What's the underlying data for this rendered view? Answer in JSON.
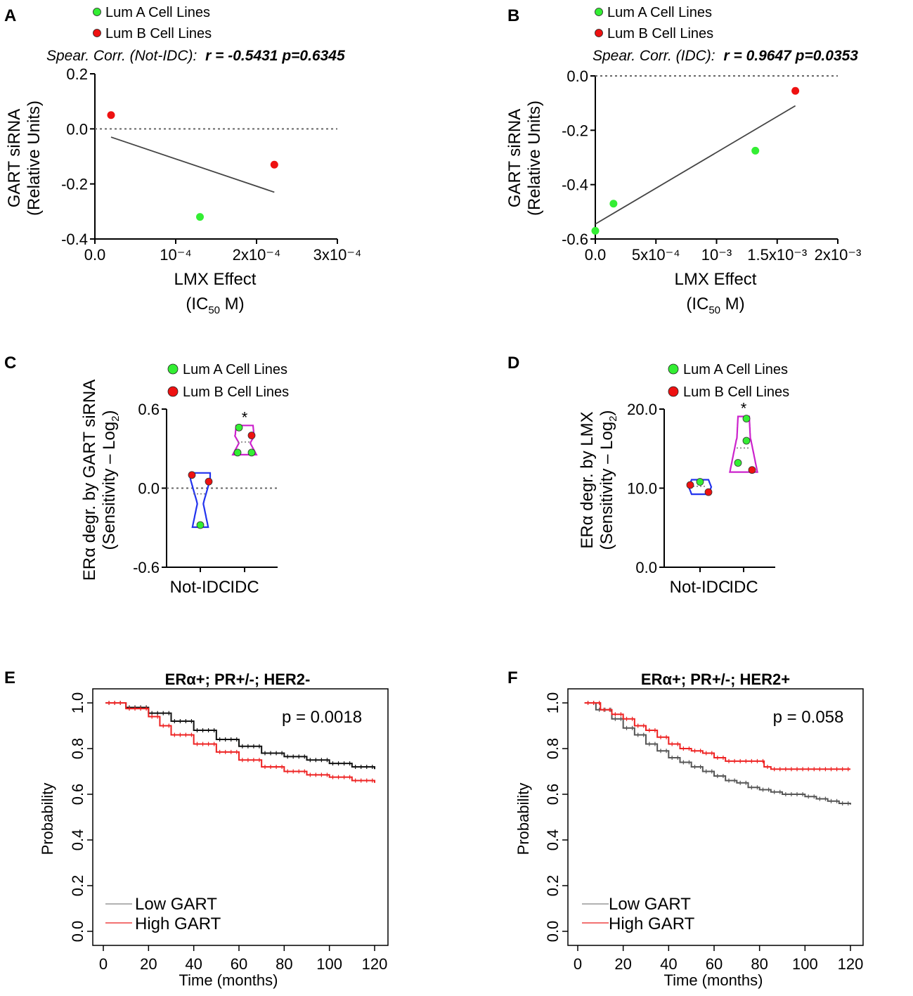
{
  "colors": {
    "lumA": "#33ee33",
    "lumB": "#ee1111",
    "low": "#111111",
    "high": "#ee2222",
    "violinIDC_C": "#cc22cc",
    "violinNot_C": "#2233ee"
  },
  "chart_data": [
    {
      "panel": "A",
      "type": "scatter",
      "legend": [
        "Lum A Cell Lines",
        "Lum B Cell Lines"
      ],
      "correlation": {
        "label": "Spear. Corr. (Not-IDC):",
        "stat": "r = -0.5431 p=0.6345"
      },
      "ylabel": [
        "GART siRNA",
        "(Relative Units)"
      ],
      "xlabel": "LMX Effect",
      "xunit": {
        "pre": "(IC",
        "sub": "50",
        "post": " M)"
      },
      "xlim": [
        0,
        0.0003
      ],
      "ylim": [
        -0.4,
        0.2
      ],
      "xticks": [
        0,
        0.0001,
        0.0002,
        0.0003
      ],
      "xtick_labels": [
        "0.0",
        "10⁻⁴",
        "2x10⁻⁴",
        "3x10⁻⁴"
      ],
      "yticks": [
        0.2,
        0.0,
        -0.2,
        -0.4
      ],
      "ytick_labels": [
        "0.2",
        "0.0",
        "-0.2",
        "-0.4"
      ],
      "points": [
        {
          "group": "Lum B",
          "x": 2e-05,
          "y": 0.05
        },
        {
          "group": "Lum B",
          "x": 0.000222,
          "y": -0.13
        },
        {
          "group": "Lum A",
          "x": 0.00013,
          "y": -0.32
        }
      ],
      "fit": {
        "x": [
          2e-05,
          0.000222
        ],
        "y": [
          -0.03,
          -0.23
        ]
      },
      "reference_y": 0.0
    },
    {
      "panel": "B",
      "type": "scatter",
      "legend": [
        "Lum A Cell Lines",
        "Lum B Cell Lines"
      ],
      "correlation": {
        "label": "Spear. Corr. (IDC):",
        "stat": "r = 0.9647 p=0.0353"
      },
      "ylabel": [
        "GART siRNA",
        "(Relative Units)"
      ],
      "xlabel": "LMX Effect",
      "xunit": {
        "pre": "(IC",
        "sub": "50",
        "post": " M)"
      },
      "xlim": [
        0,
        0.002
      ],
      "ylim": [
        -0.6,
        0.0
      ],
      "xticks": [
        0,
        0.0005,
        0.001,
        0.0015,
        0.002
      ],
      "xtick_labels": [
        "0.0",
        "5x10⁻⁴",
        "10⁻³",
        "1.5x10⁻³",
        "2x10⁻³"
      ],
      "yticks": [
        0.0,
        -0.2,
        -0.4,
        -0.6
      ],
      "ytick_labels": [
        "0.0",
        "-0.2",
        "-0.4",
        "-0.6"
      ],
      "points": [
        {
          "group": "Lum A",
          "x": 0.0,
          "y": -0.57
        },
        {
          "group": "Lum A",
          "x": 0.00015,
          "y": -0.47
        },
        {
          "group": "Lum A",
          "x": 0.00132,
          "y": -0.275
        },
        {
          "group": "Lum B",
          "x": 0.00165,
          "y": -0.055
        }
      ],
      "fit": {
        "x": [
          0.0,
          0.00165
        ],
        "y": [
          -0.545,
          -0.11
        ]
      },
      "reference_y": 0.0
    },
    {
      "panel": "C",
      "type": "violin",
      "legend": [
        "Lum A Cell Lines",
        "Lum B Cell Lines"
      ],
      "ylabel": {
        "line1": "ERα degr. by GART siRNA",
        "line2_pre": "(Sensitivity – Log",
        "line2_sub": "2",
        "line2_post": ")"
      },
      "categories": [
        "Not-IDC",
        "IDC"
      ],
      "ylim": [
        -0.6,
        0.6
      ],
      "yticks": [
        0.6,
        0.0,
        -0.6
      ],
      "ytick_labels": [
        "0.6",
        "0.0",
        "-0.6"
      ],
      "significance": "*",
      "groups": [
        {
          "name": "Not-IDC",
          "points": [
            {
              "group": "Lum B",
              "y": 0.1
            },
            {
              "group": "Lum B",
              "y": 0.05
            },
            {
              "group": "Lum A",
              "y": -0.28
            }
          ]
        },
        {
          "name": "IDC",
          "points": [
            {
              "group": "Lum A",
              "y": 0.46
            },
            {
              "group": "Lum B",
              "y": 0.4
            },
            {
              "group": "Lum A",
              "y": 0.27
            },
            {
              "group": "Lum A",
              "y": 0.27
            }
          ]
        }
      ],
      "reference_y": 0.0
    },
    {
      "panel": "D",
      "type": "violin",
      "legend": [
        "Lum A Cell Lines",
        "Lum B Cell Lines"
      ],
      "ylabel": {
        "line1": "ERα degr. by LMX",
        "line2_pre": "(Sensitivity – Log",
        "line2_sub": "2",
        "line2_post": ")"
      },
      "categories": [
        "Not-IDC",
        "IDC"
      ],
      "ylim": [
        0,
        20
      ],
      "yticks": [
        20,
        10,
        0
      ],
      "ytick_labels": [
        "20.0",
        "10.0",
        "0.0"
      ],
      "significance": "*",
      "groups": [
        {
          "name": "Not-IDC",
          "points": [
            {
              "group": "Lum A",
              "y": 10.8
            },
            {
              "group": "Lum B",
              "y": 10.4
            },
            {
              "group": "Lum B",
              "y": 9.5
            }
          ]
        },
        {
          "name": "IDC",
          "points": [
            {
              "group": "Lum A",
              "y": 18.8
            },
            {
              "group": "Lum A",
              "y": 16.0
            },
            {
              "group": "Lum A",
              "y": 13.2
            },
            {
              "group": "Lum B",
              "y": 12.3
            }
          ]
        }
      ]
    },
    {
      "panel": "E",
      "type": "line",
      "title": "ERα+; PR+/-; HER2-",
      "p_value": "p = 0.0018",
      "xlabel": "Time (months)",
      "ylabel": "Probability",
      "xlim": [
        0,
        120
      ],
      "ylim": [
        0,
        1
      ],
      "xticks": [
        0,
        20,
        40,
        60,
        80,
        100,
        120
      ],
      "yticks": [
        0.0,
        0.2,
        0.4,
        0.6,
        0.8,
        1.0
      ],
      "ytick_labels": [
        "0.0",
        "0.2",
        "0.4",
        "0.6",
        "0.8",
        "1.0"
      ],
      "series": [
        {
          "name": "Low GART",
          "x": [
            1,
            10,
            20,
            30,
            40,
            50,
            60,
            70,
            80,
            90,
            100,
            110,
            120
          ],
          "y": [
            1.0,
            0.98,
            0.955,
            0.92,
            0.88,
            0.84,
            0.81,
            0.78,
            0.765,
            0.75,
            0.735,
            0.72,
            0.71
          ]
        },
        {
          "name": "High GART",
          "x": [
            1,
            10,
            20,
            25,
            30,
            40,
            50,
            60,
            70,
            80,
            90,
            100,
            110,
            120
          ],
          "y": [
            1.0,
            0.975,
            0.94,
            0.9,
            0.86,
            0.82,
            0.785,
            0.75,
            0.72,
            0.7,
            0.685,
            0.675,
            0.66,
            0.65
          ]
        }
      ]
    },
    {
      "panel": "F",
      "type": "line",
      "title": "ERα+; PR+/-; HER2+",
      "p_value": "p = 0.058",
      "xlabel": "Time (months)",
      "ylabel": "Probability",
      "xlim": [
        0,
        120
      ],
      "ylim": [
        0,
        1
      ],
      "xticks": [
        0,
        20,
        40,
        60,
        80,
        100,
        120
      ],
      "yticks": [
        0.0,
        0.2,
        0.4,
        0.6,
        0.8,
        1.0
      ],
      "ytick_labels": [
        "0.0",
        "0.2",
        "0.4",
        "0.6",
        "0.8",
        "1.0"
      ],
      "series": [
        {
          "name": "Low GART",
          "x": [
            3,
            8,
            15,
            20,
            25,
            30,
            35,
            40,
            45,
            50,
            55,
            60,
            65,
            70,
            75,
            80,
            85,
            90,
            95,
            100,
            105,
            110,
            115,
            120
          ],
          "y": [
            1.0,
            0.97,
            0.93,
            0.89,
            0.86,
            0.82,
            0.79,
            0.76,
            0.74,
            0.72,
            0.7,
            0.68,
            0.66,
            0.65,
            0.63,
            0.62,
            0.61,
            0.6,
            0.6,
            0.59,
            0.58,
            0.57,
            0.56,
            0.555
          ]
        },
        {
          "name": "High GART",
          "x": [
            3,
            8,
            10,
            15,
            20,
            25,
            30,
            35,
            40,
            45,
            50,
            55,
            60,
            65,
            70,
            75,
            80,
            82,
            85,
            90,
            100,
            110,
            120
          ],
          "y": [
            1.0,
            1.0,
            0.97,
            0.95,
            0.93,
            0.9,
            0.88,
            0.85,
            0.82,
            0.8,
            0.79,
            0.78,
            0.76,
            0.745,
            0.745,
            0.745,
            0.745,
            0.72,
            0.71,
            0.71,
            0.71,
            0.71,
            0.71
          ]
        }
      ]
    }
  ]
}
